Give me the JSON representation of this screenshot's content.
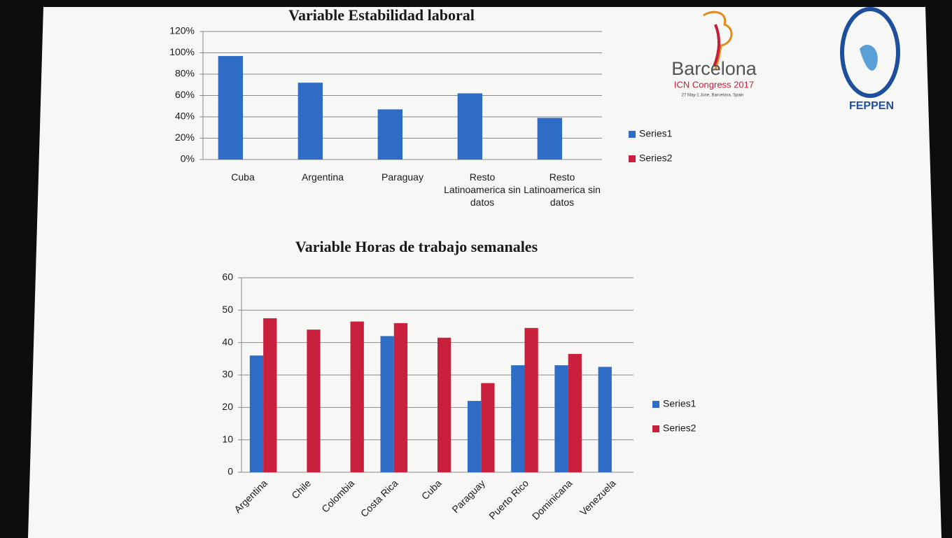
{
  "chart_data": [
    {
      "type": "bar",
      "title": "Variable Estabilidad laboral",
      "categories": [
        "Cuba",
        "Argentina",
        "Paraguay",
        "Resto Latinoamerica sin datos",
        "Resto Latinoamerica sin datos"
      ],
      "series": [
        {
          "name": "Series1",
          "color": "#2f6cc6",
          "values": [
            97,
            72,
            47,
            62,
            39
          ]
        },
        {
          "name": "Series2",
          "color": "#c9213d",
          "values": [
            null,
            null,
            null,
            null,
            null
          ]
        }
      ],
      "ylim": [
        0,
        120
      ],
      "yticks": [
        {
          "value": 0,
          "label": "0%"
        },
        {
          "value": 20,
          "label": "20%"
        },
        {
          "value": 40,
          "label": "40%"
        },
        {
          "value": 60,
          "label": "60%"
        },
        {
          "value": 80,
          "label": "80%"
        },
        {
          "value": 100,
          "label": "100%"
        },
        {
          "value": 120,
          "label": "120%"
        }
      ],
      "grid": true,
      "legend": "right"
    },
    {
      "type": "bar",
      "title": "Variable Horas de trabajo semanales",
      "categories": [
        "Argentina",
        "Chile",
        "Colombia",
        "Costa Rica",
        "Cuba",
        "Paraguay",
        "Puerto Rico",
        "Dominicana",
        "Venezuela"
      ],
      "series": [
        {
          "name": "Series1",
          "color": "#2f6cc6",
          "values": [
            36,
            null,
            null,
            42,
            null,
            22,
            33,
            33,
            32.5
          ]
        },
        {
          "name": "Series2",
          "color": "#c9213d",
          "values": [
            47.5,
            44,
            46.5,
            46,
            41.5,
            27.5,
            44.5,
            36.5,
            null
          ]
        }
      ],
      "ylim": [
        0,
        60
      ],
      "yticks": [
        0,
        10,
        20,
        30,
        40,
        50,
        60
      ],
      "grid": true,
      "legend": "right"
    }
  ],
  "logos": {
    "barcelona": {
      "name": "Barcelona",
      "event": "ICN Congress 2017",
      "dates": "27 May-1 June, Barcelona, Spain"
    },
    "feppen": {
      "name": "FEPPEN"
    }
  }
}
